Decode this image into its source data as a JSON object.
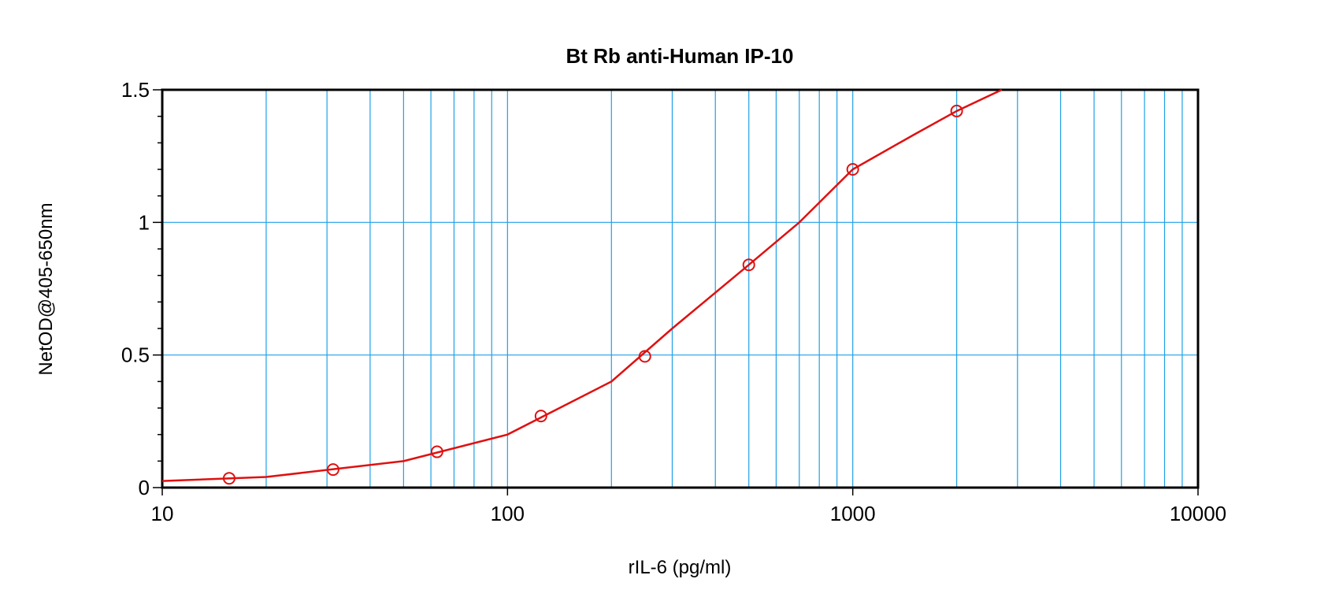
{
  "chart_data": {
    "type": "scatter",
    "title": "Bt Rb anti-Human IP-10",
    "x_label": "rIL-6 (pg/ml)",
    "y_label": "NetOD@405-650nm",
    "x_scale": "log",
    "xlim": [
      10,
      10000
    ],
    "ylim": [
      0,
      1.5
    ],
    "xticks": [
      10,
      100,
      1000,
      10000
    ],
    "xminor_ticks": [
      20,
      30,
      40,
      50,
      60,
      70,
      80,
      90,
      200,
      300,
      400,
      500,
      600,
      700,
      800,
      900,
      2000,
      3000,
      4000,
      5000,
      6000,
      7000,
      8000,
      9000
    ],
    "yticks": [
      0,
      0.5,
      1,
      1.5
    ],
    "yminor_ticks": [
      0.1,
      0.2,
      0.3,
      0.4,
      0.6,
      0.7,
      0.8,
      0.9,
      1.1,
      1.2,
      1.3,
      1.4
    ],
    "grid": true,
    "grid_color": "#1ea0e6",
    "series": [
      {
        "style": "markers",
        "color": "#e01010",
        "x": [
          15.625,
          31.25,
          62.5,
          125,
          250,
          500,
          1000,
          2000
        ],
        "values": [
          0.035,
          0.068,
          0.135,
          0.27,
          0.495,
          0.84,
          1.2,
          1.42
        ]
      },
      {
        "style": "line",
        "color": "#e01010",
        "x": [
          10,
          20,
          50,
          100,
          200,
          300,
          500,
          700,
          1000,
          1500,
          2000,
          2700
        ],
        "values": [
          0.025,
          0.04,
          0.1,
          0.2,
          0.4,
          0.6,
          0.84,
          1.0,
          1.2,
          1.33,
          1.42,
          1.5
        ]
      }
    ]
  }
}
